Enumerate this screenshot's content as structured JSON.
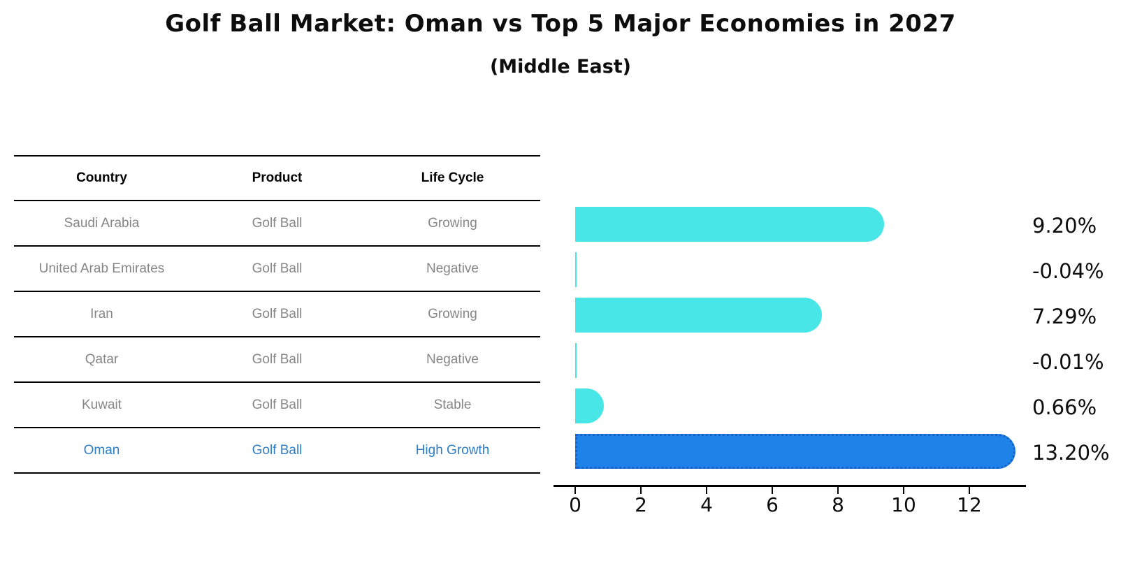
{
  "header": {
    "title": "Golf Ball Market: Oman vs Top 5 Major Economies in 2027",
    "subtitle": "(Middle East)"
  },
  "table": {
    "columns": [
      "Country",
      "Product",
      "Life Cycle"
    ],
    "rows": [
      {
        "country": "Saudi Arabia",
        "product": "Golf Ball",
        "life_cycle": "Growing",
        "highlight": false
      },
      {
        "country": "United Arab Emirates",
        "product": "Golf Ball",
        "life_cycle": "Negative",
        "highlight": false
      },
      {
        "country": "Iran",
        "product": "Golf Ball",
        "life_cycle": "Growing",
        "highlight": false
      },
      {
        "country": "Qatar",
        "product": "Golf Ball",
        "life_cycle": "Negative",
        "highlight": false
      },
      {
        "country": "Kuwait",
        "product": "Golf Ball",
        "life_cycle": "Stable",
        "highlight": false
      },
      {
        "country": "Oman",
        "product": "Golf Ball",
        "life_cycle": "High Growth",
        "highlight": true
      }
    ]
  },
  "chart_data": {
    "type": "bar",
    "orientation": "horizontal",
    "title": "Golf Ball Market: Oman vs Top 5 Major Economies in 2027",
    "subtitle": "(Middle East)",
    "categories": [
      "Saudi Arabia",
      "United Arab Emirates",
      "Iran",
      "Qatar",
      "Kuwait",
      "Oman"
    ],
    "values": [
      9.2,
      -0.04,
      7.29,
      -0.01,
      0.66,
      13.2
    ],
    "value_labels": [
      "9.20%",
      "-0.04%",
      "7.29%",
      "-0.01%",
      "0.66%",
      "13.20%"
    ],
    "x_ticks": [
      0,
      2,
      4,
      6,
      8,
      10,
      12
    ],
    "xlim": [
      -0.7,
      13.9
    ],
    "grid": false,
    "legend": false,
    "highlight_index": 5,
    "colors": {
      "bar": "#48e6e6",
      "highlight_bar": "#1e82e8",
      "highlight_edge": "#1563c9",
      "axis": "#000000",
      "table_text": "#868686",
      "highlight_text": "#2e7ec6"
    }
  }
}
